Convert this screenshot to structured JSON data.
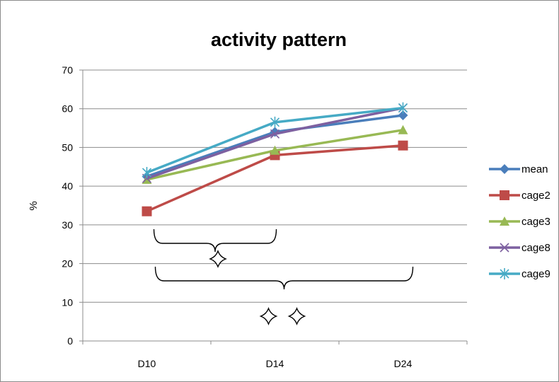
{
  "chart_data": {
    "type": "line",
    "title": "activity pattern",
    "xlabel": "",
    "ylabel": "%",
    "categories": [
      "D10",
      "D14",
      "D24"
    ],
    "ylim": [
      0,
      70
    ],
    "yticks": [
      0,
      10,
      20,
      30,
      40,
      50,
      60,
      70
    ],
    "grid": true,
    "legend_position": "right",
    "series": [
      {
        "name": "mean",
        "values": [
          42.5,
          54.0,
          58.3
        ],
        "color": "#4a7ebb",
        "marker": "diamond"
      },
      {
        "name": "cage2",
        "values": [
          33.5,
          48.0,
          50.5
        ],
        "color": "#be4b48",
        "marker": "square"
      },
      {
        "name": "cage3",
        "values": [
          41.7,
          49.2,
          54.5
        ],
        "color": "#98b954",
        "marker": "triangle"
      },
      {
        "name": "cage8",
        "values": [
          42.0,
          53.5,
          60.2
        ],
        "color": "#7d60a0",
        "marker": "x"
      },
      {
        "name": "cage9",
        "values": [
          43.5,
          56.5,
          60.2
        ],
        "color": "#46aac5",
        "marker": "star"
      }
    ],
    "annotations": [
      {
        "type": "brace",
        "from": "D10",
        "to": "D14",
        "symbol": "star4",
        "count": 1
      },
      {
        "type": "brace",
        "from": "D10",
        "to": "D24",
        "symbol": "star4",
        "count": 2
      }
    ]
  }
}
